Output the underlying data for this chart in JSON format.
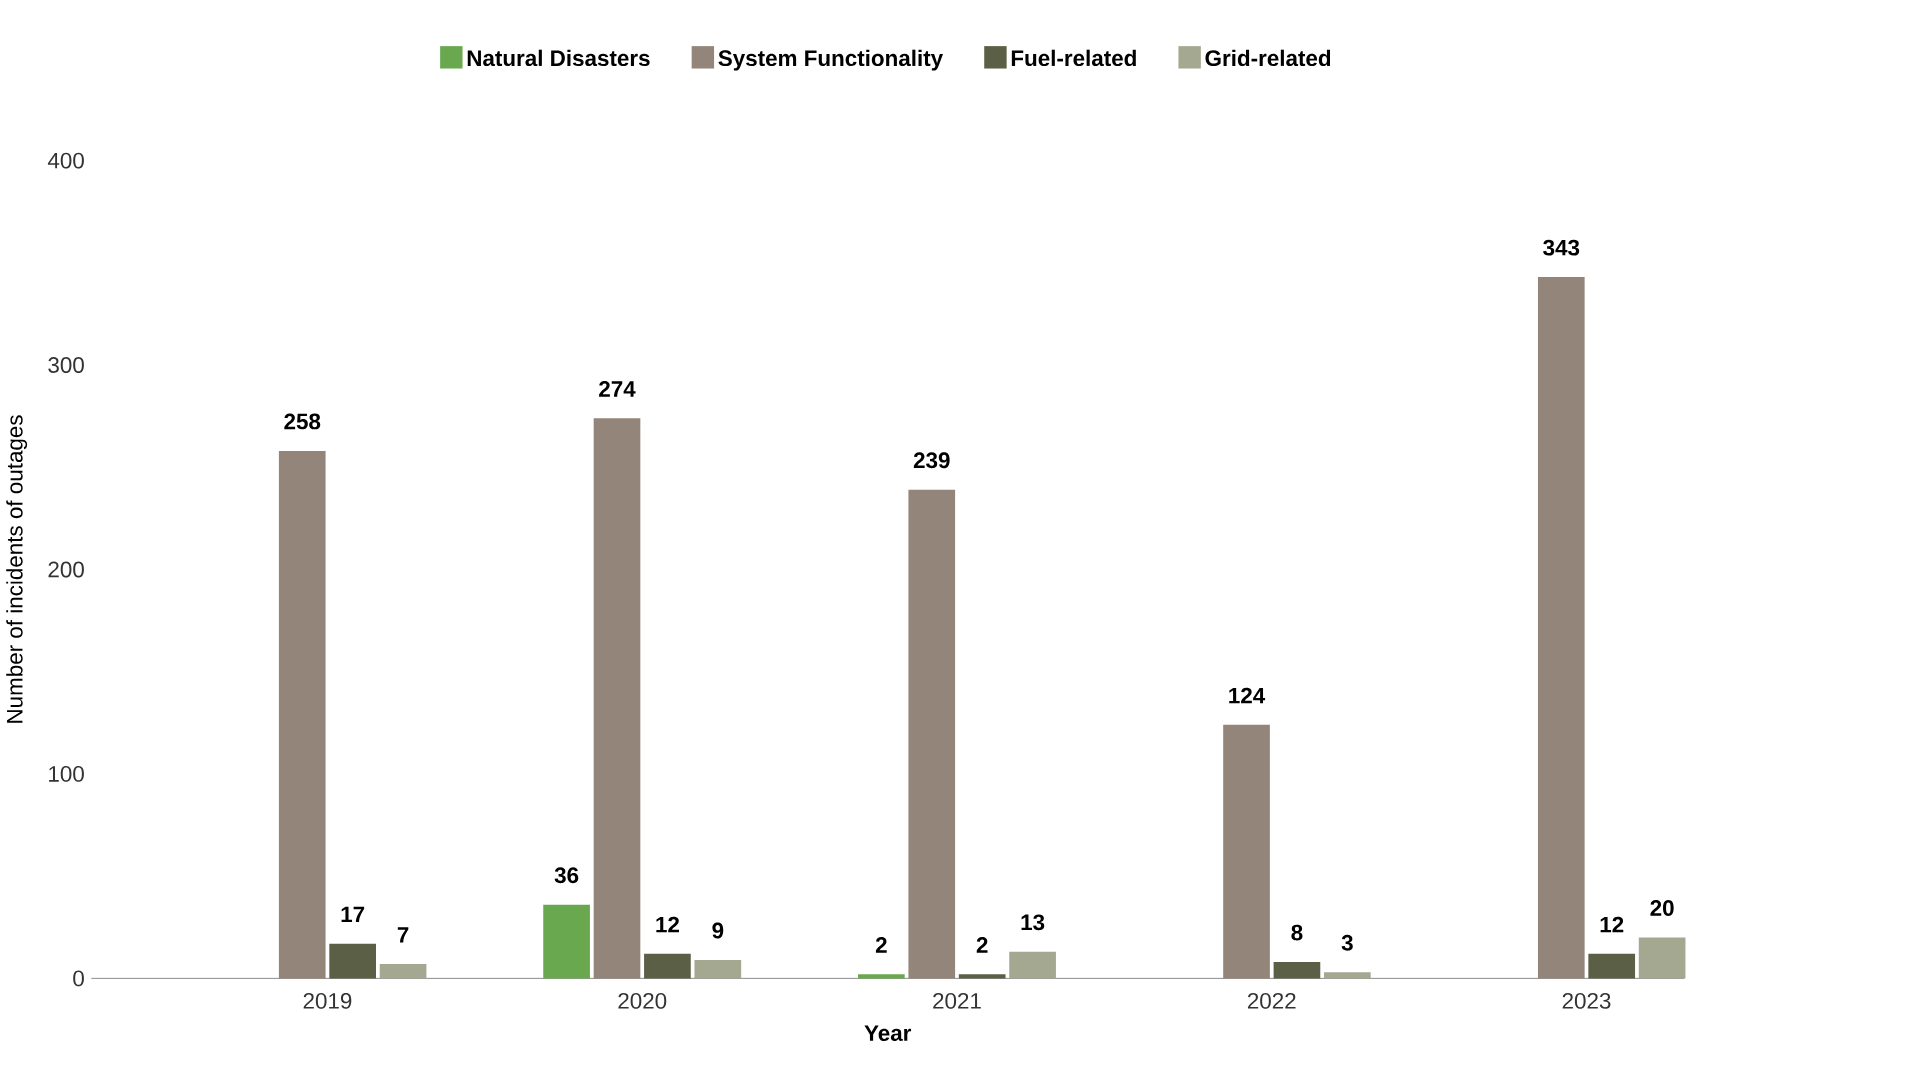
{
  "chart_data": {
    "type": "bar",
    "xlabel": "Year",
    "ylabel": "Number of incidents of outages",
    "categories": [
      "2019",
      "2020",
      "2021",
      "2022",
      "2023"
    ],
    "series": [
      {
        "name": "Natural Disasters",
        "color": "#6aa84f",
        "values": [
          null,
          36,
          2,
          null,
          null
        ]
      },
      {
        "name": "System Functionality",
        "color": "#938579",
        "values": [
          258,
          274,
          239,
          124,
          343
        ]
      },
      {
        "name": "Fuel-related",
        "color": "#5b5f45",
        "values": [
          17,
          12,
          2,
          8,
          12
        ]
      },
      {
        "name": "Grid-related",
        "color": "#a5a891",
        "values": [
          7,
          9,
          13,
          3,
          20
        ]
      }
    ],
    "ylim": [
      0,
      400
    ],
    "yticks": [
      0,
      100,
      200,
      300,
      400
    ],
    "grid": false,
    "legend": "top",
    "data_labels": true
  }
}
